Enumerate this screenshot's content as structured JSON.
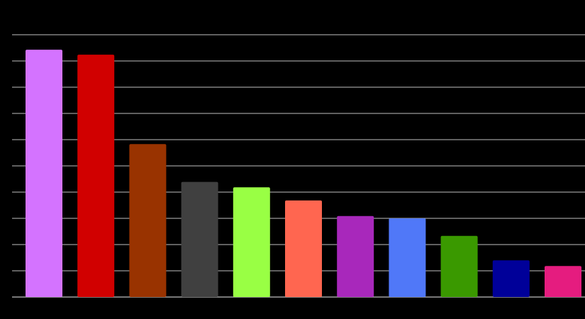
{
  "chart_data": {
    "type": "bar",
    "categories": [
      "",
      "",
      "",
      "",
      "",
      "",
      "",
      "",
      "",
      "",
      ""
    ],
    "values": [
      94.3,
      92.4,
      58.3,
      43.9,
      41.8,
      36.8,
      30.9,
      30.0,
      23.3,
      14.0,
      11.8
    ],
    "colors": [
      "#d473ff",
      "#d10000",
      "#993300",
      "#404040",
      "#99ff44",
      "#ff6650",
      "#a828bb",
      "#5078f8",
      "#3a9900",
      "#000099",
      "#e51c7f"
    ],
    "ylim": [
      0,
      100
    ],
    "grid": true,
    "legend": "none",
    "background": "#000000",
    "gridline_color": "#bfbfbf",
    "title": "",
    "xlabel": "",
    "ylabel": ""
  }
}
